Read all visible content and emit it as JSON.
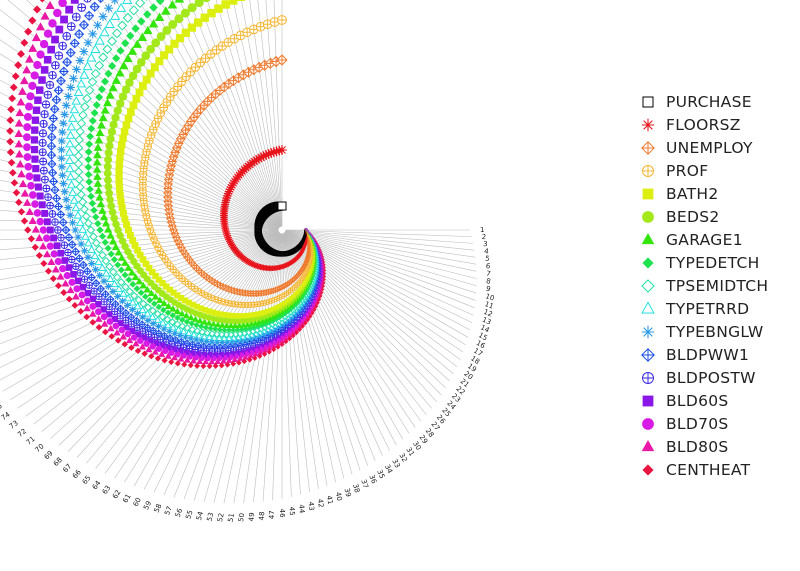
{
  "chart_data": {
    "type": "radial-scatter",
    "title": "",
    "observations": 136,
    "index_labels": [
      "1",
      "2",
      "3",
      "4",
      "5",
      "6",
      "7",
      "8",
      "9",
      "10",
      "11",
      "12",
      "13",
      "14",
      "15",
      "16",
      "17",
      "18",
      "19",
      "20",
      "21",
      "22",
      "23",
      "24",
      "25",
      "26",
      "27",
      "28",
      "29",
      "30",
      "31",
      "32",
      "33",
      "34",
      "35",
      "36",
      "37",
      "38",
      "39",
      "40",
      "41",
      "42",
      "43",
      "44",
      "45",
      "46",
      "47",
      "48",
      "49",
      "50",
      "51",
      "52",
      "53",
      "54",
      "55",
      "56",
      "57",
      "58",
      "59",
      "60",
      "61",
      "62",
      "63",
      "64",
      "65",
      "66",
      "67",
      "68",
      "69",
      "70",
      "71",
      "72",
      "73",
      "74",
      "75",
      "76",
      "77",
      "78",
      "79",
      "80",
      "81",
      "82",
      "83",
      "84",
      "85",
      "86",
      "87",
      "88",
      "89",
      "90",
      "91",
      "92",
      "93",
      "94",
      "95",
      "96",
      "97",
      "98",
      "99",
      "100",
      "101",
      "102",
      "103",
      "104",
      "105",
      "106",
      "107",
      "108",
      "109",
      "110",
      "111",
      "112",
      "113",
      "114",
      "115",
      "116",
      "117",
      "118",
      "119",
      "120",
      "121",
      "122",
      "123",
      "124",
      "125",
      "126",
      "127",
      "128",
      "129",
      "130",
      "131",
      "132",
      "133",
      "134",
      "135",
      "136"
    ],
    "variables_inner_to_outer": [
      "PURCHASE",
      "FLOORSZ",
      "UNEMPLOY",
      "PROF",
      "BATH2",
      "BEDS2",
      "GARAGE1",
      "TYPEDETCH",
      "TPSEMIDTCH",
      "TYPETRRD",
      "TYPEBNGLW",
      "BLDPWW1",
      "BLDPOSTW",
      "BLD60S",
      "BLD70S",
      "BLD80S",
      "CENTHEAT"
    ],
    "angular_extent_degrees": 270,
    "legend_position": "right",
    "series": [
      {
        "name": "PURCHASE",
        "marker": "square-open",
        "color": "#000000"
      },
      {
        "name": "FLOORSZ",
        "marker": "asterisk",
        "color": "#e8141c"
      },
      {
        "name": "UNEMPLOY",
        "marker": "diamond-plus",
        "color": "#ee7a2e"
      },
      {
        "name": "PROF",
        "marker": "circle-plus",
        "color": "#f5b531"
      },
      {
        "name": "BATH2",
        "marker": "square",
        "color": "#dcef10"
      },
      {
        "name": "BEDS2",
        "marker": "circle",
        "color": "#a3e81a"
      },
      {
        "name": "GARAGE1",
        "marker": "triangle",
        "color": "#34e50d"
      },
      {
        "name": "TYPEDETCH",
        "marker": "diamond",
        "color": "#1fe24f"
      },
      {
        "name": "TPSEMIDTCH",
        "marker": "diamond-open",
        "color": "#22dfa3"
      },
      {
        "name": "TYPETRRD",
        "marker": "triangle-open",
        "color": "#22e0e0"
      },
      {
        "name": "TYPEBNGLW",
        "marker": "asterisk",
        "color": "#2b9ae6"
      },
      {
        "name": "BLDPWW1",
        "marker": "diamond-plus",
        "color": "#1c4ee6"
      },
      {
        "name": "BLDPOSTW",
        "marker": "circle-plus",
        "color": "#3b2ae3"
      },
      {
        "name": "BLD60S",
        "marker": "square",
        "color": "#8a16e8"
      },
      {
        "name": "BLD70S",
        "marker": "circle",
        "color": "#d71de5"
      },
      {
        "name": "BLD80S",
        "marker": "triangle",
        "color": "#ea18a4"
      },
      {
        "name": "CENTHEAT",
        "marker": "diamond",
        "color": "#ea1443"
      }
    ]
  }
}
